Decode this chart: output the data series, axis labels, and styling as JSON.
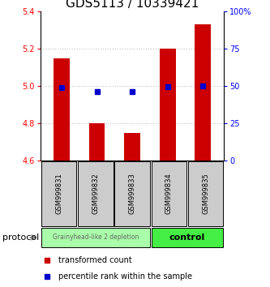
{
  "title": "GDS5113 / 10339421",
  "samples": [
    "GSM999831",
    "GSM999832",
    "GSM999833",
    "GSM999834",
    "GSM999835"
  ],
  "bar_values": [
    5.15,
    4.8,
    4.75,
    5.2,
    5.33
  ],
  "bar_bottom": 4.6,
  "percentile_values": [
    49.0,
    46.5,
    46.5,
    49.5,
    50.0
  ],
  "percentile_scale_min": 0,
  "percentile_scale_max": 100,
  "ylim": [
    4.6,
    5.4
  ],
  "yticks": [
    4.6,
    4.8,
    5.0,
    5.2,
    5.4
  ],
  "right_yticks": [
    0,
    25,
    50,
    75,
    100
  ],
  "right_yticklabels": [
    "0",
    "25",
    "50",
    "75",
    "100%"
  ],
  "bar_color": "#cc0000",
  "percentile_color": "#0000cc",
  "bar_width": 0.45,
  "groups": [
    {
      "label": "Grainyhead-like 2 depletion",
      "color": "#aaffaa",
      "count": 3
    },
    {
      "label": "control",
      "color": "#44ee44",
      "count": 2
    }
  ],
  "protocol_label": "protocol",
  "legend_bar_label": "transformed count",
  "legend_pct_label": "percentile rank within the sample",
  "sample_box_color": "#cccccc",
  "title_fontsize": 11,
  "tick_fontsize": 7,
  "sample_fontsize": 6,
  "legend_fontsize": 7,
  "group_fontsize_0": 5.5,
  "group_fontsize_1": 8
}
